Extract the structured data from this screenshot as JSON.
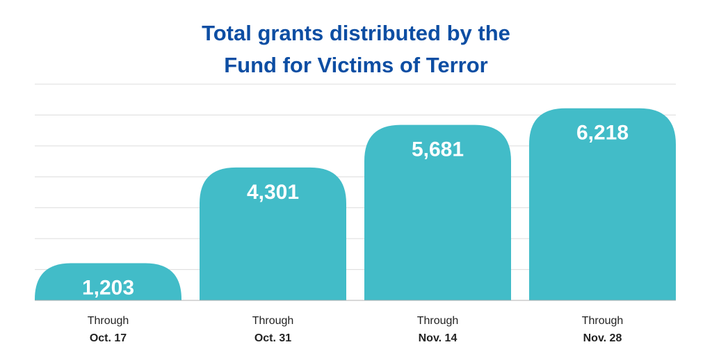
{
  "chart_data": {
    "type": "bar",
    "title_lines": [
      "Total grants distributed by the",
      "Fund for Victims of Terror"
    ],
    "categories": [
      {
        "line1": "Through",
        "line2": "Oct. 17"
      },
      {
        "line1": "Through",
        "line2": "Oct. 31"
      },
      {
        "line1": "Through",
        "line2": "Nov. 14"
      },
      {
        "line1": "Through",
        "line2": "Nov. 28"
      }
    ],
    "values": [
      1203,
      4301,
      5681,
      6218
    ],
    "value_labels": [
      "1,203",
      "4,301",
      "5,681",
      "6,218"
    ],
    "ylim": [
      0,
      7000
    ],
    "grid": true,
    "colors": {
      "bar": "#42bcc8",
      "title": "#0d4ea3",
      "grid": "#dcdcdc",
      "axis": "#b0b0b0"
    }
  }
}
